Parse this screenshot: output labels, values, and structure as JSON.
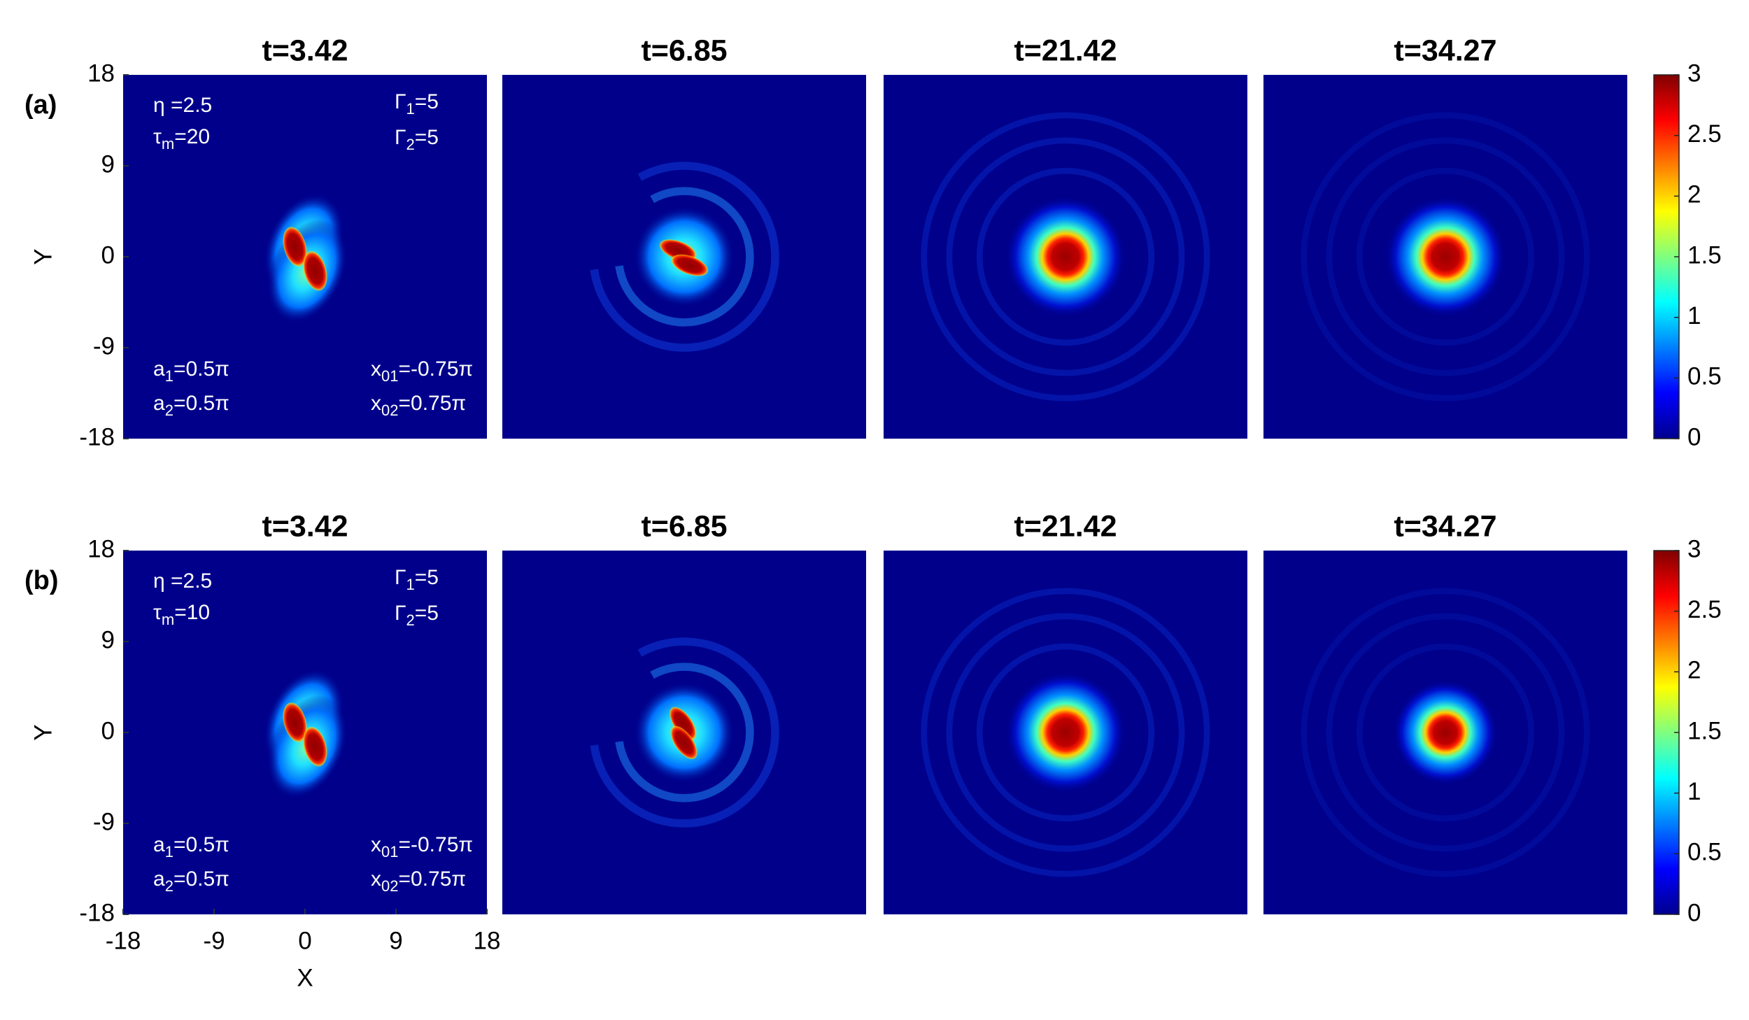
{
  "chart_data": [
    {
      "type": "heatmap",
      "panel_label": "(a)",
      "titles": [
        "t=3.42",
        "t=6.85",
        "t=21.42",
        "t=34.27"
      ],
      "xlim": [
        -18,
        18
      ],
      "ylim": [
        -18,
        18
      ],
      "yticks": [
        -18,
        -9,
        0,
        9,
        18
      ],
      "ylabel": "Y",
      "annotations": [
        {
          "parts": [
            "η =2.5"
          ]
        },
        {
          "parts": [
            "τ",
            "m",
            "=20"
          ]
        },
        {
          "parts": [
            "Γ",
            "1",
            "=5"
          ]
        },
        {
          "parts": [
            "Γ",
            "2",
            "=5"
          ]
        },
        {
          "parts": [
            "a",
            "1",
            "=0.5π"
          ]
        },
        {
          "parts": [
            "a",
            "2",
            "=0.5π"
          ]
        },
        {
          "parts": [
            "x",
            "01",
            "=-0.75π"
          ]
        },
        {
          "parts": [
            "x",
            "02",
            "=0.75π"
          ]
        }
      ],
      "colorbar": {
        "lim": [
          0,
          3
        ],
        "ticks": [
          0,
          0.5,
          1,
          1.5,
          2,
          2.5,
          3
        ]
      }
    },
    {
      "type": "heatmap",
      "panel_label": "(b)",
      "titles": [
        "t=3.42",
        "t=6.85",
        "t=21.42",
        "t=34.27"
      ],
      "xlim": [
        -18,
        18
      ],
      "ylim": [
        -18,
        18
      ],
      "xticks": [
        -18,
        -9,
        0,
        9,
        18
      ],
      "yticks": [
        -18,
        -9,
        0,
        9,
        18
      ],
      "xlabel": "X",
      "ylabel": "Y",
      "annotations": [
        {
          "parts": [
            "η =2.5"
          ]
        },
        {
          "parts": [
            "τ",
            "m",
            "=10"
          ]
        },
        {
          "parts": [
            "Γ",
            "1",
            "=5"
          ]
        },
        {
          "parts": [
            "Γ",
            "2",
            "=5"
          ]
        },
        {
          "parts": [
            "a",
            "1",
            "=0.5π"
          ]
        },
        {
          "parts": [
            "a",
            "2",
            "=0.5π"
          ]
        },
        {
          "parts": [
            "x",
            "01",
            "=-0.75π"
          ]
        },
        {
          "parts": [
            "x",
            "02",
            "=0.75π"
          ]
        }
      ],
      "colorbar": {
        "lim": [
          0,
          3
        ],
        "ticks": [
          0,
          0.5,
          1,
          1.5,
          2,
          2.5,
          3
        ]
      }
    }
  ]
}
